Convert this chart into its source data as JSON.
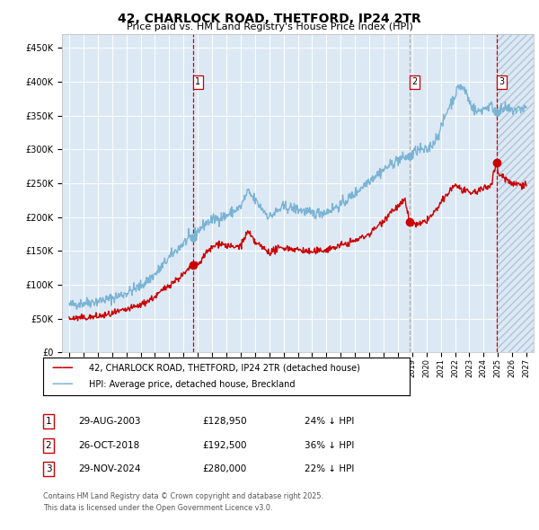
{
  "title": "42, CHARLOCK ROAD, THETFORD, IP24 2TR",
  "subtitle": "Price paid vs. HM Land Registry's House Price Index (HPI)",
  "legend_line1": "42, CHARLOCK ROAD, THETFORD, IP24 2TR (detached house)",
  "legend_line2": "HPI: Average price, detached house, Breckland",
  "footer1": "Contains HM Land Registry data © Crown copyright and database right 2025.",
  "footer2": "This data is licensed under the Open Government Licence v3.0.",
  "transactions": [
    {
      "num": 1,
      "date": "29-AUG-2003",
      "price": "£128,950",
      "pct": "24% ↓ HPI"
    },
    {
      "num": 2,
      "date": "26-OCT-2018",
      "price": "£192,500",
      "pct": "36% ↓ HPI"
    },
    {
      "num": 3,
      "date": "29-NOV-2024",
      "price": "£280,000",
      "pct": "22% ↓ HPI"
    }
  ],
  "vline_dates": [
    2003.66,
    2018.82,
    2024.91
  ],
  "vline_styles": [
    "dashed_red",
    "dashed_gray",
    "dashed_red"
  ],
  "sale_prices": [
    128950,
    192500,
    280000
  ],
  "sale_dates": [
    2003.66,
    2018.82,
    2024.91
  ],
  "hpi_color": "#7ab3d4",
  "price_color": "#cc0000",
  "vline_color_red": "#cc0000",
  "vline_color_gray": "#aaaaaa",
  "ylim": [
    0,
    470000
  ],
  "xlim": [
    1994.5,
    2027.5
  ],
  "plot_bg": "#dce9f5",
  "grid_color": "#ffffff",
  "hatch_start": 2024.91,
  "hatch_end": 2027.5
}
